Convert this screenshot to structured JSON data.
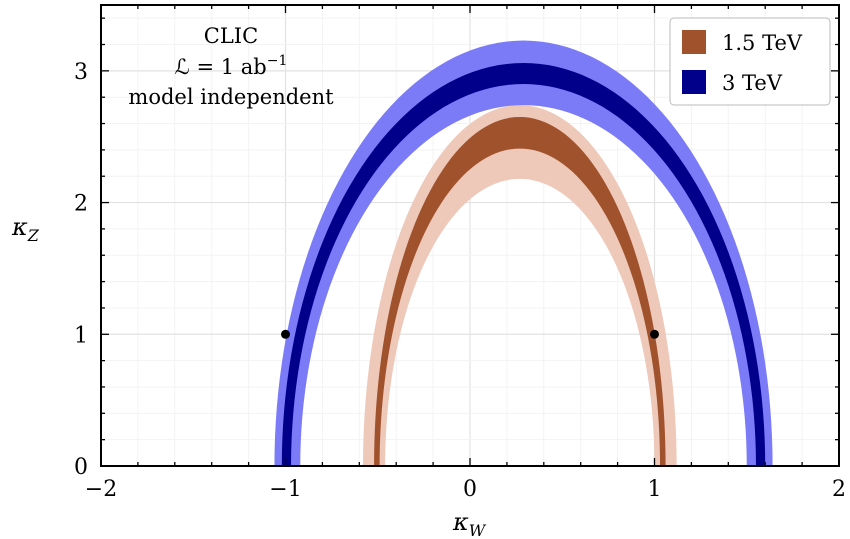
{
  "chart_data": {
    "type": "area",
    "x_axis": {
      "label_main": "κ",
      "label_sub": "W",
      "lim": [
        -2,
        2
      ],
      "major_ticks": [
        -2,
        -1,
        0,
        1,
        2
      ],
      "tick_labels": [
        "−2",
        "−1",
        "0",
        "1",
        "2"
      ]
    },
    "y_axis": {
      "label_main": "κ",
      "label_sub": "Z",
      "lim": [
        0,
        3.5
      ],
      "major_ticks": [
        0,
        1,
        2,
        3
      ],
      "tick_labels": [
        "0",
        "1",
        "2",
        "3"
      ]
    },
    "grid": true,
    "annotation": {
      "line1": "CLIC",
      "line2_main": "ℒ = 1 ab",
      "line2_sup": "−1",
      "line3": "model independent"
    },
    "legend": {
      "position": "top-right",
      "entries": [
        {
          "label": "1.5 TeV",
          "color": "#A0522D"
        },
        {
          "label": "3 TeV",
          "color": "#00008B"
        }
      ]
    },
    "series": [
      {
        "name": "1.5 TeV",
        "center_x": 0.27,
        "bands": [
          {
            "level": "outer",
            "color": "#eec8b8",
            "inner": {
              "half_width": 0.73,
              "height": 2.18
            },
            "outer": {
              "half_width": 0.85,
              "height": 2.74
            }
          },
          {
            "level": "inner",
            "color": "#a0522d",
            "inner": {
              "half_width": 0.76,
              "height": 2.41
            },
            "outer": {
              "half_width": 0.79,
              "height": 2.65
            }
          }
        ]
      },
      {
        "name": "3 TeV",
        "center_x": 0.29,
        "bands": [
          {
            "level": "outer",
            "color": "#7b7bf7",
            "inner": {
              "half_width": 1.21,
              "height": 2.74
            },
            "outer": {
              "half_width": 1.35,
              "height": 3.23
            }
          },
          {
            "level": "inner",
            "color": "#00008b",
            "inner": {
              "half_width": 1.26,
              "height": 2.9
            },
            "outer": {
              "half_width": 1.31,
              "height": 3.06
            }
          }
        ]
      }
    ],
    "points": [
      {
        "x": -1,
        "y": 1
      },
      {
        "x": 1,
        "y": 1
      }
    ]
  }
}
